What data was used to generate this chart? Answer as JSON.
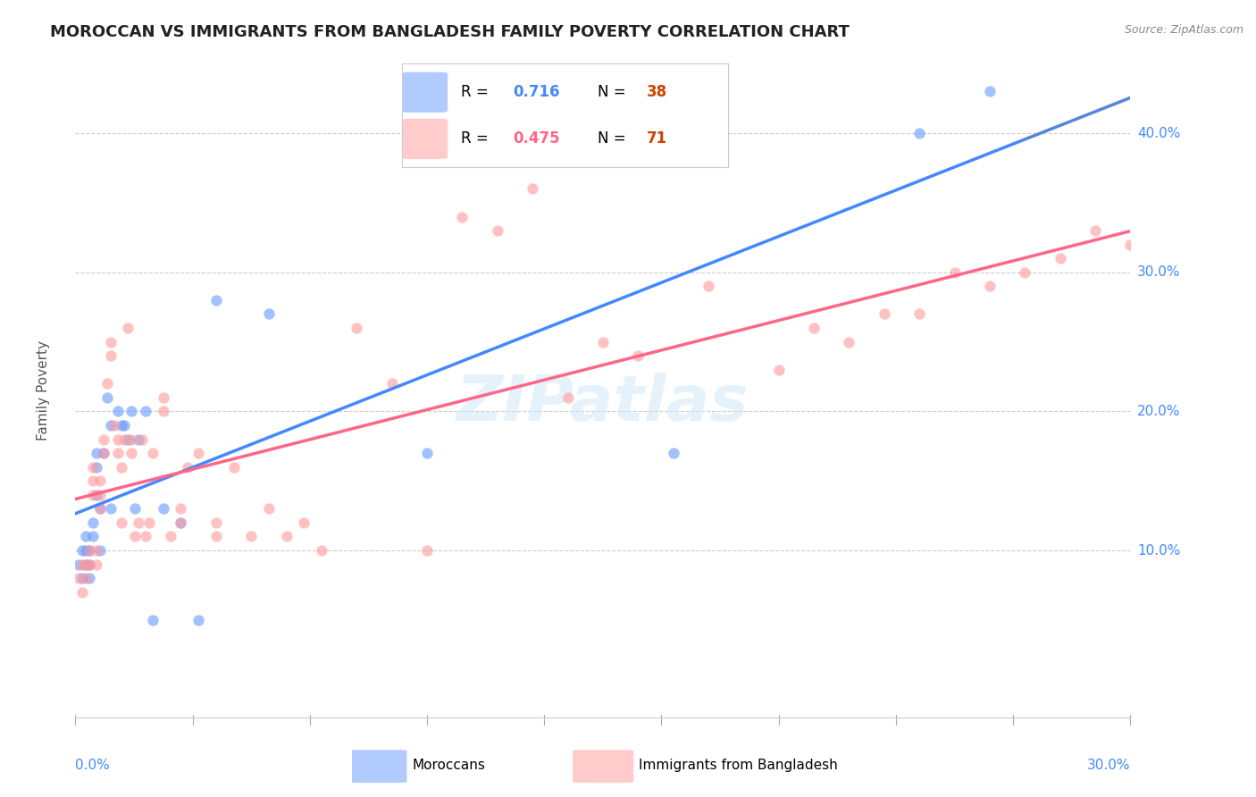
{
  "title": "MOROCCAN VS IMMIGRANTS FROM BANGLADESH FAMILY POVERTY CORRELATION CHART",
  "source": "Source: ZipAtlas.com",
  "ylabel": "Family Poverty",
  "right_yticks": [
    "10.0%",
    "20.0%",
    "30.0%",
    "40.0%"
  ],
  "right_ytick_vals": [
    0.1,
    0.2,
    0.3,
    0.4
  ],
  "legend_blue_R": "0.716",
  "legend_blue_N": "38",
  "legend_pink_R": "0.475",
  "legend_pink_N": "71",
  "label_blue": "Moroccans",
  "label_pink": "Immigrants from Bangladesh",
  "blue_color": "#6699FF",
  "pink_color": "#FF9999",
  "line_blue": "#4488FF",
  "line_pink": "#FF6688",
  "N_color": "#cc4400",
  "watermark": "ZIPatlas",
  "xlim": [
    0.0,
    0.3
  ],
  "ylim": [
    -0.02,
    0.45
  ],
  "scatter_blue_x": [
    0.001,
    0.002,
    0.002,
    0.003,
    0.003,
    0.003,
    0.004,
    0.004,
    0.004,
    0.005,
    0.005,
    0.006,
    0.006,
    0.006,
    0.007,
    0.007,
    0.008,
    0.009,
    0.01,
    0.01,
    0.012,
    0.013,
    0.014,
    0.015,
    0.016,
    0.017,
    0.018,
    0.02,
    0.022,
    0.025,
    0.03,
    0.035,
    0.04,
    0.055,
    0.1,
    0.17,
    0.24,
    0.26
  ],
  "scatter_blue_y": [
    0.09,
    0.1,
    0.08,
    0.11,
    0.1,
    0.09,
    0.1,
    0.09,
    0.08,
    0.12,
    0.11,
    0.17,
    0.16,
    0.14,
    0.13,
    0.1,
    0.17,
    0.21,
    0.19,
    0.13,
    0.2,
    0.19,
    0.19,
    0.18,
    0.2,
    0.13,
    0.18,
    0.2,
    0.05,
    0.13,
    0.12,
    0.05,
    0.28,
    0.27,
    0.17,
    0.17,
    0.4,
    0.43
  ],
  "scatter_pink_x": [
    0.001,
    0.002,
    0.002,
    0.003,
    0.003,
    0.004,
    0.004,
    0.005,
    0.005,
    0.005,
    0.006,
    0.006,
    0.007,
    0.007,
    0.007,
    0.008,
    0.008,
    0.009,
    0.01,
    0.01,
    0.011,
    0.012,
    0.012,
    0.013,
    0.013,
    0.014,
    0.015,
    0.016,
    0.016,
    0.017,
    0.018,
    0.019,
    0.02,
    0.021,
    0.022,
    0.025,
    0.025,
    0.027,
    0.03,
    0.03,
    0.032,
    0.035,
    0.04,
    0.04,
    0.045,
    0.05,
    0.055,
    0.06,
    0.065,
    0.07,
    0.08,
    0.09,
    0.1,
    0.11,
    0.12,
    0.13,
    0.14,
    0.15,
    0.16,
    0.18,
    0.2,
    0.21,
    0.22,
    0.23,
    0.24,
    0.25,
    0.26,
    0.27,
    0.28,
    0.29,
    0.3
  ],
  "scatter_pink_y": [
    0.08,
    0.09,
    0.07,
    0.09,
    0.08,
    0.1,
    0.09,
    0.16,
    0.15,
    0.14,
    0.1,
    0.09,
    0.15,
    0.14,
    0.13,
    0.18,
    0.17,
    0.22,
    0.25,
    0.24,
    0.19,
    0.18,
    0.17,
    0.16,
    0.12,
    0.18,
    0.26,
    0.18,
    0.17,
    0.11,
    0.12,
    0.18,
    0.11,
    0.12,
    0.17,
    0.21,
    0.2,
    0.11,
    0.13,
    0.12,
    0.16,
    0.17,
    0.12,
    0.11,
    0.16,
    0.11,
    0.13,
    0.11,
    0.12,
    0.1,
    0.26,
    0.22,
    0.1,
    0.34,
    0.33,
    0.36,
    0.21,
    0.25,
    0.24,
    0.29,
    0.23,
    0.26,
    0.25,
    0.27,
    0.27,
    0.3,
    0.29,
    0.3,
    0.31,
    0.33,
    0.32
  ]
}
